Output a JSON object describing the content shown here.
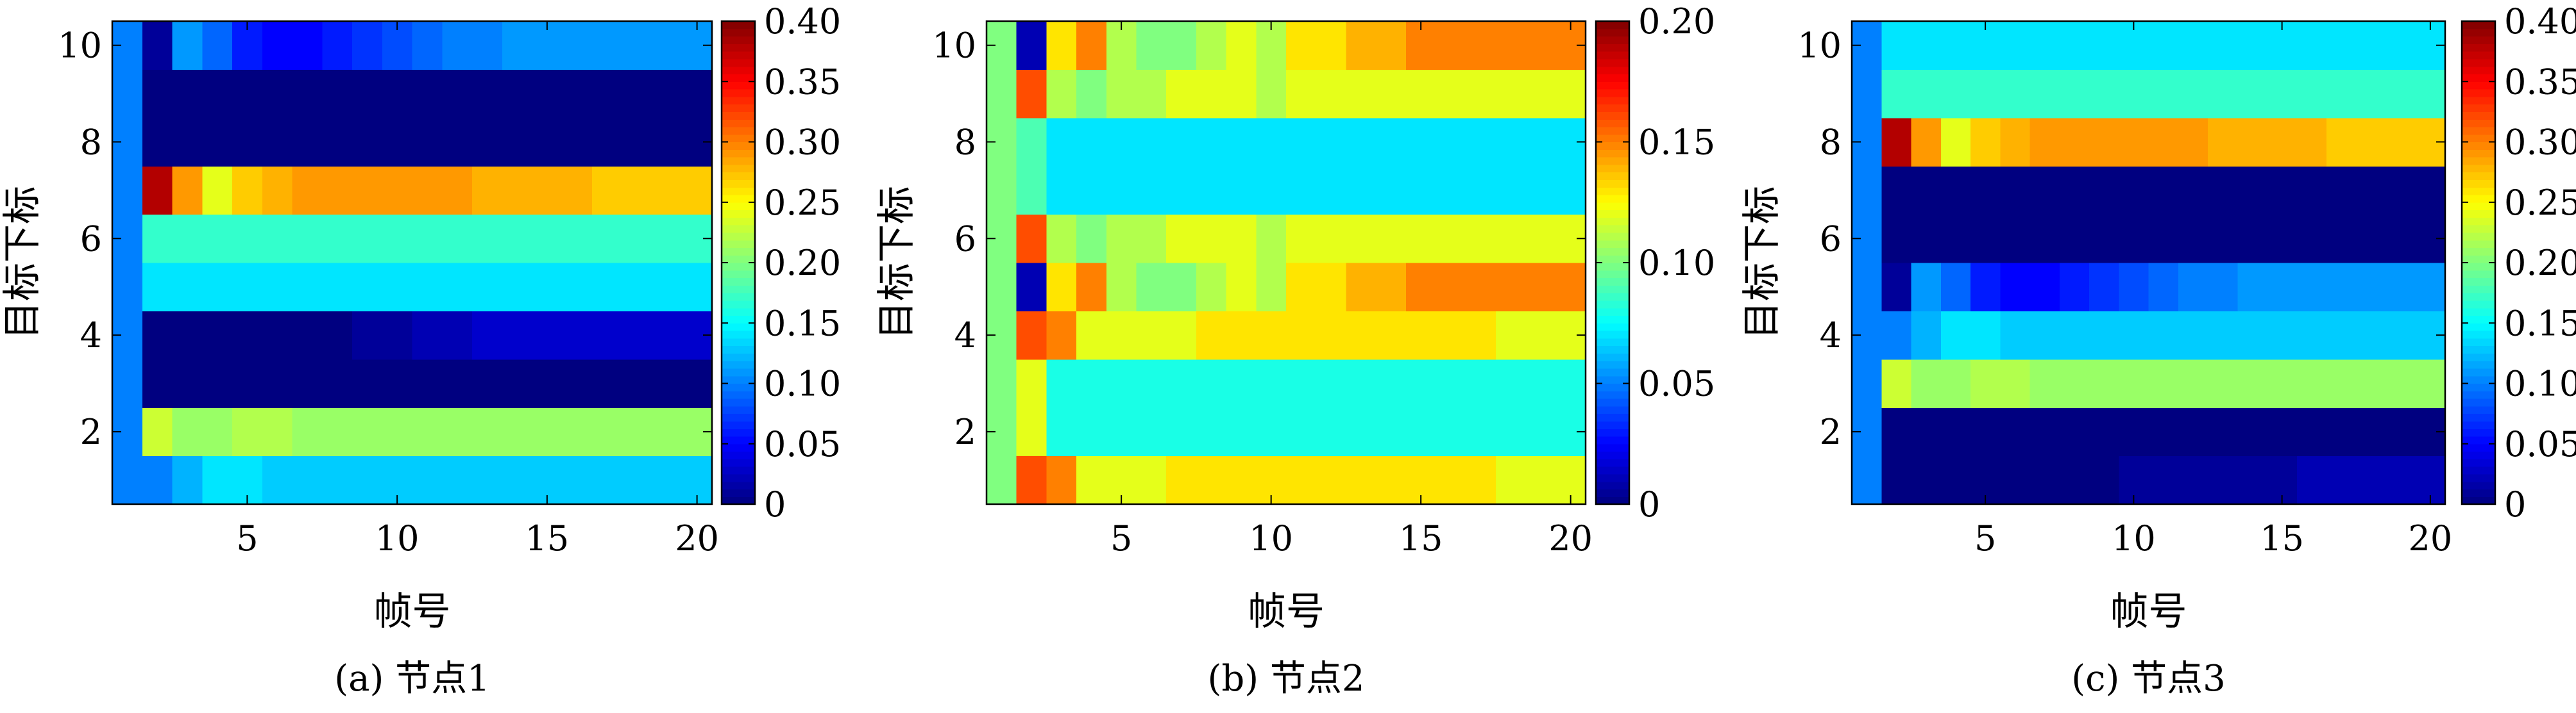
{
  "colormap": "jet",
  "chart_data": [
    {
      "type": "heatmap",
      "caption": "(a) 节点1",
      "xlabel": "帧号",
      "ylabel": "目标下标",
      "x": [
        1,
        2,
        3,
        4,
        5,
        6,
        7,
        8,
        9,
        10,
        11,
        12,
        13,
        14,
        15,
        16,
        17,
        18,
        19,
        20
      ],
      "y": [
        1,
        2,
        3,
        4,
        5,
        6,
        7,
        8,
        9,
        10
      ],
      "xticks": [
        "5",
        "10",
        "15",
        "20"
      ],
      "yticks": [
        "2",
        "4",
        "6",
        "8",
        "10"
      ],
      "xlim": [
        0.5,
        20.5
      ],
      "ylim": [
        0.5,
        10.5
      ],
      "clim": [
        0,
        0.4
      ],
      "colorbar_ticks": [
        "0",
        "0.05",
        "0.10",
        "0.15",
        "0.20",
        "0.25",
        "0.30",
        "0.35",
        "0.40"
      ],
      "grid": false,
      "values": [
        [
          0.1,
          0.1,
          0.12,
          0.14,
          0.14,
          0.13,
          0.13,
          0.13,
          0.13,
          0.13,
          0.13,
          0.13,
          0.13,
          0.13,
          0.13,
          0.13,
          0.13,
          0.13,
          0.13,
          0.13
        ],
        [
          0.1,
          0.23,
          0.21,
          0.21,
          0.22,
          0.22,
          0.21,
          0.21,
          0.21,
          0.21,
          0.21,
          0.21,
          0.21,
          0.21,
          0.21,
          0.21,
          0.21,
          0.21,
          0.21,
          0.21
        ],
        [
          0.1,
          0.0,
          0.0,
          0.0,
          0.0,
          0.0,
          0.0,
          0.0,
          0.0,
          0.0,
          0.0,
          0.0,
          0.0,
          0.0,
          0.0,
          0.0,
          0.0,
          0.0,
          0.0,
          0.0
        ],
        [
          0.1,
          0.0,
          0.0,
          0.0,
          0.0,
          0.0,
          0.0,
          0.0,
          0.01,
          0.01,
          0.02,
          0.02,
          0.03,
          0.03,
          0.03,
          0.03,
          0.03,
          0.03,
          0.03,
          0.03
        ],
        [
          0.1,
          0.14,
          0.14,
          0.14,
          0.14,
          0.14,
          0.14,
          0.14,
          0.14,
          0.14,
          0.14,
          0.14,
          0.14,
          0.14,
          0.14,
          0.14,
          0.14,
          0.14,
          0.14,
          0.14
        ],
        [
          0.1,
          0.17,
          0.17,
          0.17,
          0.17,
          0.17,
          0.17,
          0.17,
          0.17,
          0.17,
          0.17,
          0.17,
          0.17,
          0.17,
          0.17,
          0.17,
          0.17,
          0.17,
          0.17,
          0.17
        ],
        [
          0.1,
          0.38,
          0.29,
          0.24,
          0.27,
          0.28,
          0.29,
          0.29,
          0.29,
          0.29,
          0.29,
          0.29,
          0.28,
          0.28,
          0.28,
          0.28,
          0.27,
          0.27,
          0.27,
          0.27
        ],
        [
          0.1,
          0.0,
          0.0,
          0.0,
          0.0,
          0.0,
          0.0,
          0.0,
          0.0,
          0.0,
          0.0,
          0.0,
          0.0,
          0.0,
          0.0,
          0.0,
          0.0,
          0.0,
          0.0,
          0.0
        ],
        [
          0.1,
          0.0,
          0.0,
          0.0,
          0.0,
          0.0,
          0.0,
          0.0,
          0.0,
          0.0,
          0.0,
          0.0,
          0.0,
          0.0,
          0.0,
          0.0,
          0.0,
          0.0,
          0.0,
          0.0
        ],
        [
          0.1,
          0.01,
          0.11,
          0.09,
          0.06,
          0.05,
          0.05,
          0.06,
          0.07,
          0.08,
          0.09,
          0.1,
          0.1,
          0.11,
          0.11,
          0.11,
          0.11,
          0.11,
          0.11,
          0.11
        ]
      ]
    },
    {
      "type": "heatmap",
      "caption": "(b) 节点2",
      "xlabel": "帧号",
      "ylabel": "目标下标",
      "x": [
        1,
        2,
        3,
        4,
        5,
        6,
        7,
        8,
        9,
        10,
        11,
        12,
        13,
        14,
        15,
        16,
        17,
        18,
        19,
        20
      ],
      "y": [
        1,
        2,
        3,
        4,
        5,
        6,
        7,
        8,
        9,
        10
      ],
      "xticks": [
        "5",
        "10",
        "15",
        "20"
      ],
      "yticks": [
        "2",
        "4",
        "6",
        "8",
        "10"
      ],
      "xlim": [
        0.5,
        20.5
      ],
      "ylim": [
        0.5,
        10.5
      ],
      "clim": [
        0,
        0.2
      ],
      "colorbar_ticks": [
        "0",
        "0.05",
        "0.10",
        "0.15",
        "0.20"
      ],
      "grid": false,
      "values": [
        [
          0.1,
          0.16,
          0.15,
          0.12,
          0.12,
          0.12,
          0.13,
          0.13,
          0.13,
          0.13,
          0.13,
          0.13,
          0.13,
          0.13,
          0.13,
          0.13,
          0.13,
          0.12,
          0.12,
          0.12
        ],
        [
          0.1,
          0.12,
          0.08,
          0.08,
          0.08,
          0.08,
          0.08,
          0.08,
          0.08,
          0.08,
          0.08,
          0.08,
          0.08,
          0.08,
          0.08,
          0.08,
          0.08,
          0.08,
          0.08,
          0.08
        ],
        [
          0.1,
          0.12,
          0.08,
          0.08,
          0.08,
          0.08,
          0.08,
          0.08,
          0.08,
          0.08,
          0.08,
          0.08,
          0.08,
          0.08,
          0.08,
          0.08,
          0.08,
          0.08,
          0.08,
          0.08
        ],
        [
          0.1,
          0.16,
          0.15,
          0.12,
          0.12,
          0.12,
          0.12,
          0.13,
          0.13,
          0.13,
          0.13,
          0.13,
          0.13,
          0.13,
          0.13,
          0.13,
          0.13,
          0.12,
          0.12,
          0.12
        ],
        [
          0.1,
          0.01,
          0.13,
          0.15,
          0.11,
          0.1,
          0.1,
          0.11,
          0.12,
          0.11,
          0.13,
          0.13,
          0.14,
          0.14,
          0.15,
          0.15,
          0.15,
          0.15,
          0.15,
          0.15
        ],
        [
          0.1,
          0.16,
          0.11,
          0.1,
          0.11,
          0.11,
          0.12,
          0.12,
          0.12,
          0.11,
          0.12,
          0.12,
          0.12,
          0.12,
          0.12,
          0.12,
          0.12,
          0.12,
          0.12,
          0.12
        ],
        [
          0.1,
          0.09,
          0.07,
          0.07,
          0.07,
          0.07,
          0.07,
          0.07,
          0.07,
          0.07,
          0.07,
          0.07,
          0.07,
          0.07,
          0.07,
          0.07,
          0.07,
          0.07,
          0.07,
          0.07
        ],
        [
          0.1,
          0.09,
          0.07,
          0.07,
          0.07,
          0.07,
          0.07,
          0.07,
          0.07,
          0.07,
          0.07,
          0.07,
          0.07,
          0.07,
          0.07,
          0.07,
          0.07,
          0.07,
          0.07,
          0.07
        ],
        [
          0.1,
          0.16,
          0.11,
          0.1,
          0.11,
          0.11,
          0.12,
          0.12,
          0.12,
          0.11,
          0.12,
          0.12,
          0.12,
          0.12,
          0.12,
          0.12,
          0.12,
          0.12,
          0.12,
          0.12
        ],
        [
          0.1,
          0.01,
          0.13,
          0.15,
          0.11,
          0.1,
          0.1,
          0.11,
          0.12,
          0.11,
          0.13,
          0.13,
          0.14,
          0.14,
          0.15,
          0.15,
          0.15,
          0.15,
          0.15,
          0.15
        ]
      ]
    },
    {
      "type": "heatmap",
      "caption": "(c) 节点3",
      "xlabel": "帧号",
      "ylabel": "目标下标",
      "x": [
        1,
        2,
        3,
        4,
        5,
        6,
        7,
        8,
        9,
        10,
        11,
        12,
        13,
        14,
        15,
        16,
        17,
        18,
        19,
        20
      ],
      "y": [
        1,
        2,
        3,
        4,
        5,
        6,
        7,
        8,
        9,
        10
      ],
      "xticks": [
        "5",
        "10",
        "15",
        "20"
      ],
      "yticks": [
        "2",
        "4",
        "6",
        "8",
        "10"
      ],
      "xlim": [
        0.5,
        20.5
      ],
      "ylim": [
        0.5,
        10.5
      ],
      "clim": [
        0,
        0.4
      ],
      "colorbar_ticks": [
        "0",
        "0.05",
        "0.10",
        "0.15",
        "0.20",
        "0.25",
        "0.30",
        "0.35",
        "0.40"
      ],
      "grid": false,
      "values": [
        [
          0.1,
          0.0,
          0.0,
          0.0,
          0.0,
          0.0,
          0.0,
          0.0,
          0.0,
          0.01,
          0.01,
          0.01,
          0.01,
          0.01,
          0.01,
          0.02,
          0.02,
          0.02,
          0.02,
          0.02
        ],
        [
          0.1,
          0.0,
          0.0,
          0.0,
          0.0,
          0.0,
          0.0,
          0.0,
          0.0,
          0.0,
          0.0,
          0.0,
          0.0,
          0.0,
          0.0,
          0.0,
          0.0,
          0.0,
          0.0,
          0.0
        ],
        [
          0.1,
          0.23,
          0.21,
          0.21,
          0.22,
          0.22,
          0.21,
          0.21,
          0.21,
          0.21,
          0.21,
          0.21,
          0.21,
          0.21,
          0.21,
          0.21,
          0.21,
          0.21,
          0.21,
          0.21
        ],
        [
          0.1,
          0.1,
          0.12,
          0.14,
          0.14,
          0.13,
          0.13,
          0.13,
          0.13,
          0.13,
          0.13,
          0.13,
          0.13,
          0.13,
          0.13,
          0.13,
          0.13,
          0.13,
          0.13,
          0.13
        ],
        [
          0.1,
          0.01,
          0.11,
          0.09,
          0.06,
          0.05,
          0.05,
          0.06,
          0.07,
          0.08,
          0.09,
          0.1,
          0.1,
          0.11,
          0.11,
          0.11,
          0.11,
          0.11,
          0.11,
          0.11
        ],
        [
          0.1,
          0.0,
          0.0,
          0.0,
          0.0,
          0.0,
          0.0,
          0.0,
          0.0,
          0.0,
          0.0,
          0.0,
          0.0,
          0.0,
          0.0,
          0.0,
          0.0,
          0.0,
          0.0,
          0.0
        ],
        [
          0.1,
          0.0,
          0.0,
          0.0,
          0.0,
          0.0,
          0.0,
          0.0,
          0.0,
          0.0,
          0.0,
          0.0,
          0.0,
          0.0,
          0.0,
          0.0,
          0.0,
          0.0,
          0.0,
          0.0
        ],
        [
          0.1,
          0.38,
          0.29,
          0.24,
          0.27,
          0.28,
          0.29,
          0.29,
          0.29,
          0.29,
          0.29,
          0.29,
          0.28,
          0.28,
          0.28,
          0.28,
          0.27,
          0.27,
          0.27,
          0.27
        ],
        [
          0.1,
          0.17,
          0.17,
          0.17,
          0.17,
          0.17,
          0.17,
          0.17,
          0.17,
          0.17,
          0.17,
          0.17,
          0.17,
          0.17,
          0.17,
          0.17,
          0.17,
          0.17,
          0.17,
          0.17
        ],
        [
          0.1,
          0.14,
          0.14,
          0.14,
          0.14,
          0.14,
          0.14,
          0.14,
          0.14,
          0.14,
          0.14,
          0.14,
          0.14,
          0.14,
          0.14,
          0.14,
          0.14,
          0.14,
          0.14,
          0.14
        ]
      ]
    }
  ]
}
